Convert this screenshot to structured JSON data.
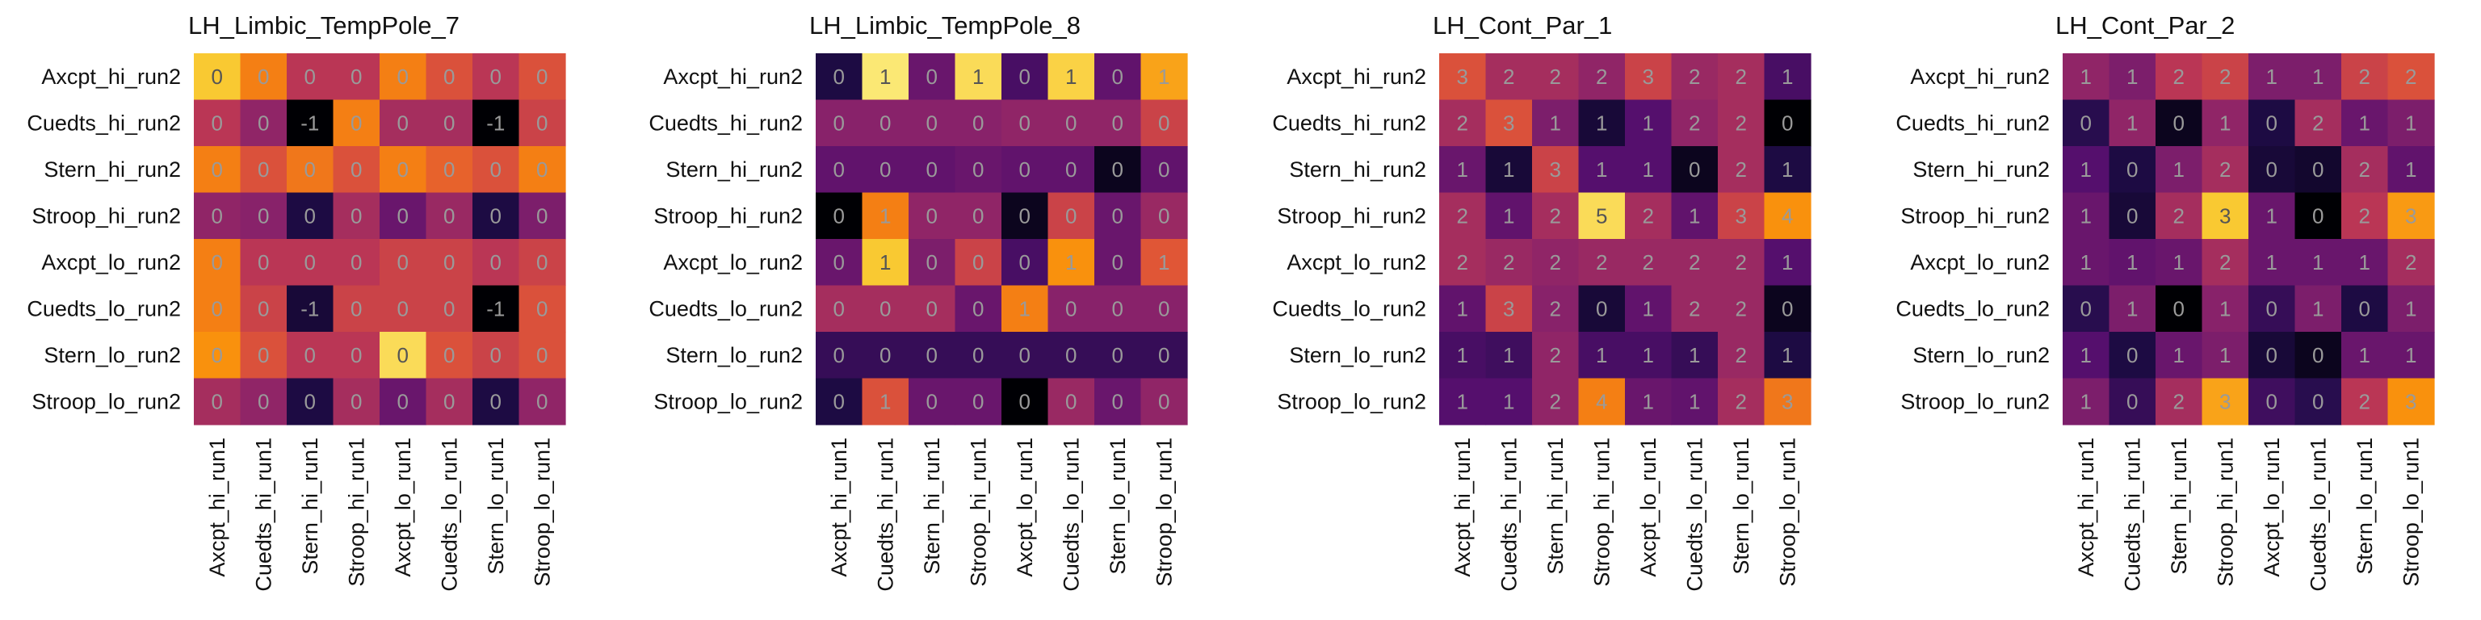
{
  "chart_data": [
    {
      "type": "heatmap",
      "title": "LH_Limbic_TempPole_7",
      "rows": [
        "Axcpt_hi_run2",
        "Cuedts_hi_run2",
        "Stern_hi_run2",
        "Stroop_hi_run2",
        "Axcpt_lo_run2",
        "Cuedts_lo_run2",
        "Stern_lo_run2",
        "Stroop_lo_run2"
      ],
      "cols": [
        "Axcpt_hi_run1",
        "Cuedts_hi_run1",
        "Stern_hi_run1",
        "Stroop_hi_run1",
        "Axcpt_lo_run1",
        "Cuedts_lo_run1",
        "Stern_lo_run1",
        "Stroop_lo_run1"
      ],
      "values": [
        [
          0,
          0,
          0,
          0,
          0,
          0,
          0,
          0
        ],
        [
          0,
          0,
          -1,
          0,
          0,
          0,
          -1,
          0
        ],
        [
          0,
          0,
          0,
          0,
          0,
          0,
          0,
          0
        ],
        [
          0,
          0,
          0,
          0,
          0,
          0,
          0,
          0
        ],
        [
          0,
          0,
          0,
          0,
          0,
          0,
          0,
          0
        ],
        [
          0,
          0,
          -1,
          0,
          0,
          0,
          -1,
          0
        ],
        [
          0,
          0,
          0,
          0,
          0,
          0,
          0,
          0
        ],
        [
          0,
          0,
          0,
          0,
          0,
          0,
          0,
          0
        ]
      ],
      "intensity": [
        [
          0.88,
          0.72,
          0.5,
          0.5,
          0.72,
          0.6,
          0.5,
          0.6
        ],
        [
          0.5,
          0.4,
          0.0,
          0.72,
          0.45,
          0.45,
          0.0,
          0.55
        ],
        [
          0.72,
          0.6,
          0.7,
          0.6,
          0.72,
          0.65,
          0.6,
          0.72
        ],
        [
          0.4,
          0.38,
          0.12,
          0.45,
          0.3,
          0.42,
          0.12,
          0.35
        ],
        [
          0.72,
          0.5,
          0.5,
          0.5,
          0.55,
          0.55,
          0.5,
          0.55
        ],
        [
          0.72,
          0.55,
          0.1,
          0.55,
          0.55,
          0.55,
          0.0,
          0.6
        ],
        [
          0.76,
          0.6,
          0.5,
          0.5,
          0.92,
          0.6,
          0.55,
          0.6
        ],
        [
          0.45,
          0.4,
          0.12,
          0.45,
          0.3,
          0.45,
          0.12,
          0.4
        ]
      ],
      "xlabel": "",
      "ylabel": "",
      "grid": false,
      "legend": "none"
    },
    {
      "type": "heatmap",
      "title": "LH_Limbic_TempPole_8",
      "rows": [
        "Axcpt_hi_run2",
        "Cuedts_hi_run2",
        "Stern_hi_run2",
        "Stroop_hi_run2",
        "Axcpt_lo_run2",
        "Cuedts_lo_run2",
        "Stern_lo_run2",
        "Stroop_lo_run2"
      ],
      "cols": [
        "Axcpt_hi_run1",
        "Cuedts_hi_run1",
        "Stern_hi_run1",
        "Stroop_hi_run1",
        "Axcpt_lo_run1",
        "Cuedts_lo_run1",
        "Stern_lo_run1",
        "Stroop_lo_run1"
      ],
      "values": [
        [
          0,
          1,
          0,
          1,
          0,
          1,
          0,
          1
        ],
        [
          0,
          0,
          0,
          0,
          0,
          0,
          0,
          0
        ],
        [
          0,
          0,
          0,
          0,
          0,
          0,
          0,
          0
        ],
        [
          0,
          1,
          0,
          0,
          0,
          0,
          0,
          0
        ],
        [
          0,
          1,
          0,
          0,
          0,
          1,
          0,
          1
        ],
        [
          0,
          0,
          0,
          0,
          1,
          0,
          0,
          0
        ],
        [
          0,
          0,
          0,
          0,
          0,
          0,
          0,
          0
        ],
        [
          0,
          1,
          0,
          0,
          0,
          0,
          0,
          0
        ]
      ],
      "intensity": [
        [
          0.12,
          0.95,
          0.3,
          0.92,
          0.22,
          0.9,
          0.28,
          0.8
        ],
        [
          0.38,
          0.38,
          0.38,
          0.38,
          0.4,
          0.4,
          0.4,
          0.55
        ],
        [
          0.28,
          0.28,
          0.28,
          0.3,
          0.28,
          0.28,
          0.05,
          0.28
        ],
        [
          0.0,
          0.72,
          0.4,
          0.4,
          0.05,
          0.55,
          0.3,
          0.42
        ],
        [
          0.3,
          0.88,
          0.35,
          0.55,
          0.22,
          0.76,
          0.3,
          0.62
        ],
        [
          0.45,
          0.45,
          0.45,
          0.3,
          0.72,
          0.38,
          0.38,
          0.38
        ],
        [
          0.18,
          0.18,
          0.18,
          0.18,
          0.18,
          0.18,
          0.18,
          0.18
        ],
        [
          0.12,
          0.6,
          0.3,
          0.3,
          0.0,
          0.42,
          0.3,
          0.4
        ]
      ],
      "xlabel": "",
      "ylabel": "",
      "grid": false,
      "legend": "none"
    },
    {
      "type": "heatmap",
      "title": "LH_Cont_Par_1",
      "rows": [
        "Axcpt_hi_run2",
        "Cuedts_hi_run2",
        "Stern_hi_run2",
        "Stroop_hi_run2",
        "Axcpt_lo_run2",
        "Cuedts_lo_run2",
        "Stern_lo_run2",
        "Stroop_lo_run2"
      ],
      "cols": [
        "Axcpt_hi_run1",
        "Cuedts_hi_run1",
        "Stern_hi_run1",
        "Stroop_hi_run1",
        "Axcpt_lo_run1",
        "Cuedts_lo_run1",
        "Stern_lo_run1",
        "Stroop_lo_run1"
      ],
      "values": [
        [
          3,
          2,
          2,
          2,
          3,
          2,
          2,
          1
        ],
        [
          2,
          3,
          1,
          1,
          1,
          2,
          2,
          0
        ],
        [
          1,
          1,
          3,
          1,
          1,
          0,
          2,
          1
        ],
        [
          2,
          1,
          2,
          5,
          2,
          1,
          3,
          4
        ],
        [
          2,
          2,
          2,
          2,
          2,
          2,
          2,
          1
        ],
        [
          1,
          3,
          2,
          0,
          1,
          2,
          2,
          0
        ],
        [
          1,
          1,
          2,
          1,
          1,
          1,
          2,
          1
        ],
        [
          1,
          1,
          2,
          4,
          1,
          1,
          2,
          3
        ]
      ],
      "intensity": [
        [
          0.6,
          0.45,
          0.45,
          0.4,
          0.55,
          0.42,
          0.45,
          0.22
        ],
        [
          0.45,
          0.6,
          0.35,
          0.1,
          0.25,
          0.4,
          0.45,
          0.0
        ],
        [
          0.3,
          0.1,
          0.55,
          0.25,
          0.25,
          0.05,
          0.45,
          0.12
        ],
        [
          0.45,
          0.28,
          0.45,
          0.92,
          0.45,
          0.28,
          0.55,
          0.76
        ],
        [
          0.45,
          0.42,
          0.4,
          0.42,
          0.42,
          0.42,
          0.42,
          0.25
        ],
        [
          0.28,
          0.55,
          0.38,
          0.1,
          0.28,
          0.42,
          0.42,
          0.05
        ],
        [
          0.22,
          0.2,
          0.4,
          0.22,
          0.22,
          0.18,
          0.42,
          0.12
        ],
        [
          0.25,
          0.25,
          0.4,
          0.72,
          0.3,
          0.28,
          0.45,
          0.7
        ]
      ],
      "xlabel": "",
      "ylabel": "",
      "grid": false,
      "legend": "none"
    },
    {
      "type": "heatmap",
      "title": "LH_Cont_Par_2",
      "rows": [
        "Axcpt_hi_run2",
        "Cuedts_hi_run2",
        "Stern_hi_run2",
        "Stroop_hi_run2",
        "Axcpt_lo_run2",
        "Cuedts_lo_run2",
        "Stern_lo_run2",
        "Stroop_lo_run2"
      ],
      "cols": [
        "Axcpt_hi_run1",
        "Cuedts_hi_run1",
        "Stern_hi_run1",
        "Stroop_hi_run1",
        "Axcpt_lo_run1",
        "Cuedts_lo_run1",
        "Stern_lo_run1",
        "Stroop_lo_run1"
      ],
      "values": [
        [
          1,
          1,
          2,
          2,
          1,
          1,
          2,
          2
        ],
        [
          0,
          1,
          0,
          1,
          0,
          2,
          1,
          1
        ],
        [
          1,
          0,
          1,
          2,
          0,
          0,
          2,
          1
        ],
        [
          1,
          0,
          2,
          3,
          1,
          0,
          2,
          3
        ],
        [
          1,
          1,
          1,
          2,
          1,
          1,
          1,
          2
        ],
        [
          0,
          1,
          0,
          1,
          0,
          1,
          0,
          1
        ],
        [
          1,
          0,
          1,
          1,
          0,
          0,
          1,
          1
        ],
        [
          1,
          0,
          2,
          3,
          0,
          0,
          2,
          3
        ]
      ],
      "intensity": [
        [
          0.4,
          0.35,
          0.5,
          0.55,
          0.35,
          0.35,
          0.55,
          0.6
        ],
        [
          0.15,
          0.4,
          0.05,
          0.4,
          0.12,
          0.45,
          0.3,
          0.35
        ],
        [
          0.25,
          0.12,
          0.35,
          0.45,
          0.1,
          0.08,
          0.45,
          0.28
        ],
        [
          0.3,
          0.1,
          0.45,
          0.88,
          0.3,
          0.0,
          0.5,
          0.78
        ],
        [
          0.3,
          0.28,
          0.3,
          0.45,
          0.3,
          0.3,
          0.3,
          0.45
        ],
        [
          0.15,
          0.35,
          0.0,
          0.38,
          0.18,
          0.35,
          0.12,
          0.35
        ],
        [
          0.25,
          0.12,
          0.3,
          0.35,
          0.1,
          0.05,
          0.3,
          0.3
        ],
        [
          0.35,
          0.18,
          0.45,
          0.8,
          0.2,
          0.15,
          0.5,
          0.76
        ]
      ],
      "xlabel": "",
      "ylabel": "",
      "grid": false,
      "legend": "none"
    }
  ],
  "colors": {
    "palette": "inferno",
    "text_light": "#9a9a9a",
    "text_dark": "#555555",
    "background": "#ffffff"
  }
}
